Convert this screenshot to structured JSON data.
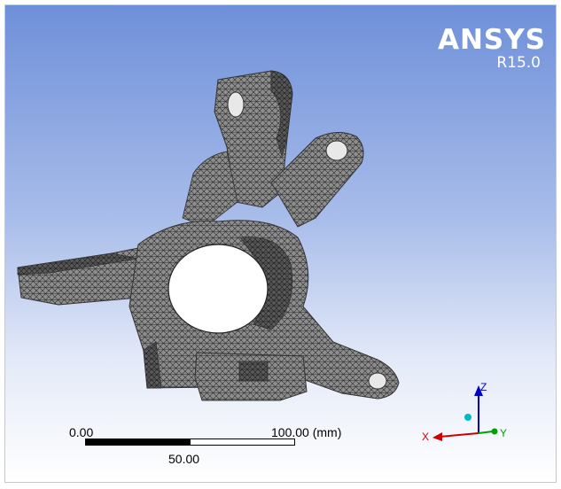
{
  "logo": {
    "brand": "ANSYS",
    "version": "R15.0"
  },
  "scale_bar": {
    "min_label": "0.00",
    "max_label": "100.00 (mm)",
    "mid_label": "50.00"
  },
  "triad": {
    "x_label": "X",
    "y_label": "Y",
    "z_label": "Z",
    "x_color": "#cc0000",
    "y_color": "#00a000",
    "z_color": "#0000cc"
  },
  "colors": {
    "background_top": "#6e8fd9",
    "background_bottom": "#ffffff",
    "mesh_fill": "#8c8c8c",
    "mesh_lines": "#2a2a2a"
  }
}
